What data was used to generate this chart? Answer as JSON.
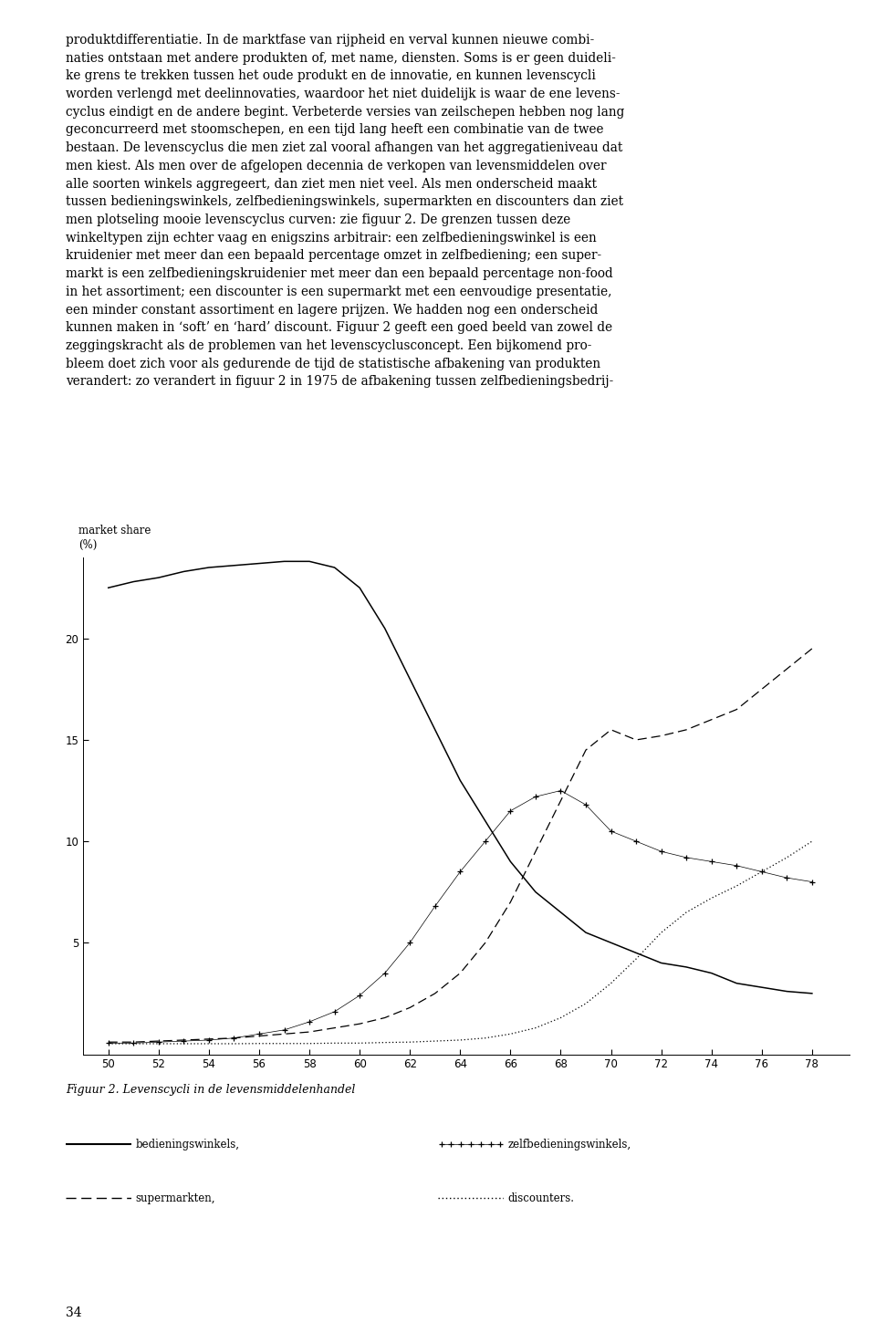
{
  "ylabel_line1": "market share",
  "ylabel_line2": "(%)",
  "xlabel_ticks": [
    50,
    52,
    54,
    56,
    58,
    60,
    62,
    64,
    66,
    68,
    70,
    72,
    74,
    76,
    78
  ],
  "yticks": [
    5,
    10,
    15,
    20
  ],
  "ylim": [
    -0.5,
    24
  ],
  "xlim": [
    49,
    79.5
  ],
  "bedieningswinkels_x": [
    50,
    51,
    52,
    53,
    54,
    55,
    56,
    57,
    58,
    59,
    60,
    61,
    62,
    63,
    64,
    65,
    66,
    67,
    68,
    69,
    70,
    71,
    72,
    73,
    74,
    75,
    76,
    77,
    78
  ],
  "bedieningswinkels_y": [
    22.5,
    22.8,
    23.0,
    23.3,
    23.5,
    23.6,
    23.7,
    23.8,
    23.8,
    23.5,
    22.5,
    20.5,
    18.0,
    15.5,
    13.0,
    11.0,
    9.0,
    7.5,
    6.5,
    5.5,
    5.0,
    4.5,
    4.0,
    3.8,
    3.5,
    3.0,
    2.8,
    2.6,
    2.5
  ],
  "supermarkten_x": [
    50,
    51,
    52,
    53,
    54,
    55,
    56,
    57,
    58,
    59,
    60,
    61,
    62,
    63,
    64,
    65,
    66,
    67,
    68,
    69,
    70,
    71,
    72,
    73,
    74,
    75,
    76,
    77,
    78
  ],
  "supermarkten_y": [
    0.1,
    0.1,
    0.15,
    0.2,
    0.25,
    0.3,
    0.4,
    0.5,
    0.6,
    0.8,
    1.0,
    1.3,
    1.8,
    2.5,
    3.5,
    5.0,
    7.0,
    9.5,
    12.0,
    14.5,
    15.5,
    15.0,
    15.2,
    15.5,
    16.0,
    16.5,
    17.5,
    18.5,
    19.5
  ],
  "zelfbediening_x": [
    50,
    51,
    52,
    53,
    54,
    55,
    56,
    57,
    58,
    59,
    60,
    61,
    62,
    63,
    64,
    65,
    66,
    67,
    68,
    69,
    70,
    71,
    72,
    73,
    74,
    75,
    76,
    77,
    78
  ],
  "zelfbediening_y": [
    0.05,
    0.05,
    0.1,
    0.15,
    0.2,
    0.3,
    0.5,
    0.7,
    1.1,
    1.6,
    2.4,
    3.5,
    5.0,
    6.8,
    8.5,
    10.0,
    11.5,
    12.2,
    12.5,
    11.8,
    10.5,
    10.0,
    9.5,
    9.2,
    9.0,
    8.8,
    8.5,
    8.2,
    8.0
  ],
  "discounters_x": [
    50,
    51,
    52,
    53,
    54,
    55,
    56,
    57,
    58,
    59,
    60,
    61,
    62,
    63,
    64,
    65,
    66,
    67,
    68,
    69,
    70,
    71,
    72,
    73,
    74,
    75,
    76,
    77,
    78
  ],
  "discounters_y": [
    0.02,
    0.02,
    0.02,
    0.02,
    0.02,
    0.02,
    0.03,
    0.03,
    0.03,
    0.05,
    0.05,
    0.08,
    0.1,
    0.15,
    0.2,
    0.3,
    0.5,
    0.8,
    1.3,
    2.0,
    3.0,
    4.2,
    5.5,
    6.5,
    7.2,
    7.8,
    8.5,
    9.2,
    10.0
  ],
  "background_color": "#ffffff",
  "figcaption": "Figuur 2. Levenscycli in de levensmiddelenhandel",
  "page_number": "34",
  "text_body": "produktdifferentiatie. In de marktfase van rijpheid en verval kunnen nieuwe combi-\nnaties ontstaan met andere produkten of, met name, diensten. Soms is er geen duideli-\nke grens te trekken tussen het oude produkt en de innovatie, en kunnen levenscycli\nworden verlengd met deelinnovaties, waardoor het niet duidelijk is waar de ene levens-\ncyclus eindigt en de andere begint. Verbeterde versies van zeilschepen hebben nog lang\ngeconcurreerd met stoomschepen, en een tijd lang heeft een combinatie van de twee\nbestaan. De levenscyclus die men ziet zal vooral afhangen van het aggregatieniveau dat\nmen kiest. Als men over de afgelopen decennia de verkopen van levensmiddelen over\nalle soorten winkels aggregeert, dan ziet men niet veel. Als men onderscheid maakt\ntussen bedieningswinkels, zelfbedieningswinkels, supermarkten en discounters dan ziet\nmen plotseling mooie levenscyclus curven: zie figuur 2. De grenzen tussen deze\nwinkeltypen zijn echter vaag en enigszins arbitrair: een zelfbedieningswinkel is een\nkruidenier met meer dan een bepaald percentage omzet in zelfbediening; een super-\nmarkt is een zelfbedieningskruidenier met meer dan een bepaald percentage non-food\nin het assortiment; een discounter is een supermarkt met een eenvoudige presentatie,\neen minder constant assortiment en lagere prijzen. We hadden nog een onderscheid\nkunnen maken in ‘soft’ en ‘hard’ discount. Figuur 2 geeft een goed beeld van zowel de\nzeggingskracht als de problemen van het levenscyclusconcept. Een bijkomend pro-\nbleem doet zich voor als gedurende de tijd de statistische afbakening van produkten\nverandert: zo verandert in figuur 2 in 1975 de afbakening tussen zelfbedieningsbedrij-"
}
